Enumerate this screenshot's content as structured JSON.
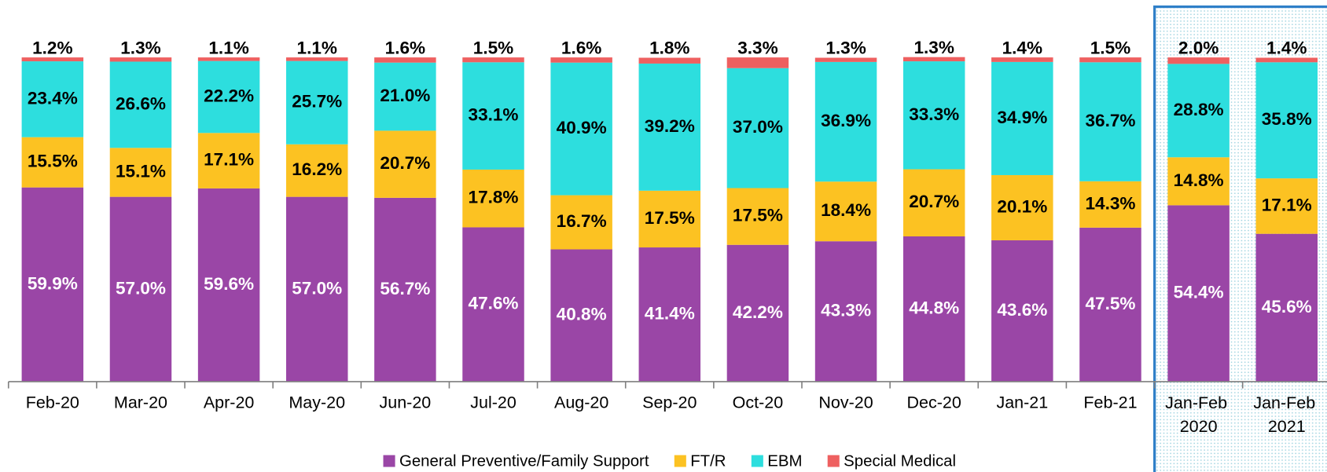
{
  "chart_data": {
    "type": "stacked_bar",
    "categories": [
      "Feb-20",
      "Mar-20",
      "Apr-20",
      "May-20",
      "Jun-20",
      "Jul-20",
      "Aug-20",
      "Sep-20",
      "Oct-20",
      "Nov-20",
      "Dec-20",
      "Jan-21",
      "Feb-21",
      "Jan-Feb 2020",
      "Jan-Feb 2021"
    ],
    "ylim": [
      0,
      100
    ],
    "legend": "bottom",
    "series": [
      {
        "name": "General Preventive/Family Support",
        "color": "#9a46a6",
        "values": [
          59.9,
          57.0,
          59.6,
          57.0,
          56.7,
          47.6,
          40.8,
          41.4,
          42.2,
          43.3,
          44.8,
          43.6,
          47.5,
          54.4,
          45.6
        ],
        "value_labels": [
          "59.9%",
          "57.0%",
          "59.6%",
          "57.0%",
          "56.7%",
          "47.6%",
          "40.8%",
          "41.4%",
          "42.2%",
          "43.3%",
          "44.8%",
          "43.6%",
          "47.5%",
          "54.4%",
          "45.6%"
        ]
      },
      {
        "name": "FT/R",
        "color": "#fcc222",
        "values": [
          15.5,
          15.1,
          17.1,
          16.2,
          20.7,
          17.8,
          16.7,
          17.5,
          17.5,
          18.4,
          20.7,
          20.1,
          14.3,
          14.8,
          17.1
        ],
        "value_labels": [
          "15.5%",
          "15.1%",
          "17.1%",
          "16.2%",
          "20.7%",
          "17.8%",
          "16.7%",
          "17.5%",
          "17.5%",
          "18.4%",
          "20.7%",
          "20.1%",
          "14.3%",
          "14.8%",
          "17.1%"
        ]
      },
      {
        "name": "EBM",
        "color": "#2ddede",
        "values": [
          23.4,
          26.6,
          22.2,
          25.7,
          21.0,
          33.1,
          40.9,
          39.2,
          37.0,
          36.9,
          33.3,
          34.9,
          36.7,
          28.8,
          35.8
        ],
        "value_labels": [
          "23.4%",
          "26.6%",
          "22.2%",
          "25.7%",
          "21.0%",
          "33.1%",
          "40.9%",
          "39.2%",
          "37.0%",
          "36.9%",
          "33.3%",
          "34.9%",
          "36.7%",
          "28.8%",
          "35.8%"
        ]
      },
      {
        "name": "Special Medical",
        "color": "#ee6060",
        "values": [
          1.2,
          1.3,
          1.1,
          1.1,
          1.6,
          1.5,
          1.6,
          1.8,
          3.3,
          1.3,
          1.3,
          1.4,
          1.5,
          2.0,
          1.4
        ],
        "value_labels": [
          "1.2%",
          "1.3%",
          "1.1%",
          "1.1%",
          "1.6%",
          "1.5%",
          "1.6%",
          "1.8%",
          "3.3%",
          "1.3%",
          "1.3%",
          "1.4%",
          "1.5%",
          "2.0%",
          "1.4%"
        ]
      }
    ]
  }
}
